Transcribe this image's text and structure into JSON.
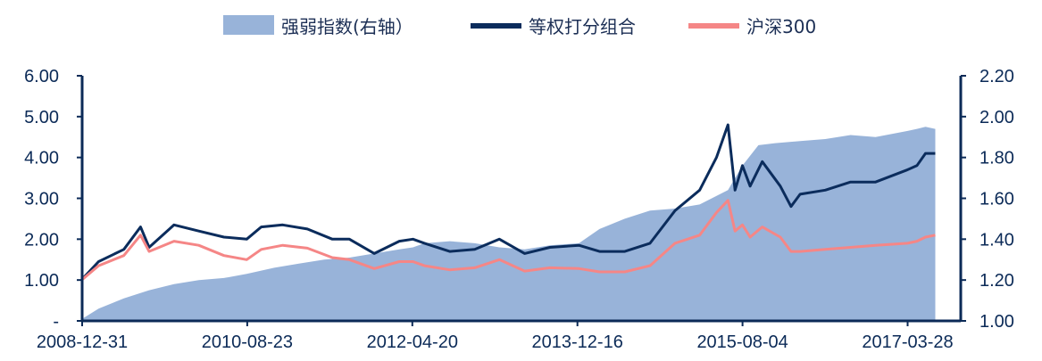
{
  "chart_data": {
    "type": "area+line",
    "title": "",
    "xlabel": "",
    "ylabel": "",
    "ylim_left": [
      0,
      6
    ],
    "ylim_right": [
      1.0,
      2.2
    ],
    "left_tick_labels": [
      "-",
      "1.00",
      "2.00",
      "3.00",
      "4.00",
      "5.00",
      "6.00"
    ],
    "right_tick_labels": [
      "1.00",
      "1.20",
      "1.40",
      "1.60",
      "1.80",
      "2.00",
      "2.20"
    ],
    "x_tick_labels": [
      "2008-12-31",
      "2010-08-23",
      "2012-04-20",
      "2013-12-16",
      "2015-08-04",
      "2017-03-28"
    ],
    "legend_position": "top-center",
    "grid": false,
    "series": [
      {
        "name": "强弱指数(右轴）",
        "kind": "area",
        "axis": "right",
        "color": "#98b3d9",
        "x": [
          "2008-12-31",
          "2009-03-01",
          "2009-06-01",
          "2009-09-01",
          "2009-12-01",
          "2010-03-01",
          "2010-06-01",
          "2010-08-23",
          "2010-12-01",
          "2011-03-01",
          "2011-06-01",
          "2011-09-01",
          "2011-12-01",
          "2012-03-01",
          "2012-04-20",
          "2012-06-01",
          "2012-09-01",
          "2012-12-01",
          "2013-03-01",
          "2013-06-01",
          "2013-09-01",
          "2013-12-16",
          "2014-03-01",
          "2014-06-01",
          "2014-09-01",
          "2014-12-01",
          "2015-03-01",
          "2015-06-12",
          "2015-08-04",
          "2015-10-01",
          "2015-12-01",
          "2016-03-01",
          "2016-06-01",
          "2016-09-01",
          "2016-12-01",
          "2017-03-28",
          "2017-05-01",
          "2017-06-01",
          "2017-07-07"
        ],
        "values": [
          1.01,
          1.06,
          1.11,
          1.15,
          1.18,
          1.2,
          1.21,
          1.23,
          1.26,
          1.28,
          1.3,
          1.31,
          1.33,
          1.35,
          1.36,
          1.38,
          1.39,
          1.38,
          1.36,
          1.35,
          1.37,
          1.38,
          1.45,
          1.5,
          1.54,
          1.55,
          1.57,
          1.64,
          1.76,
          1.86,
          1.87,
          1.88,
          1.89,
          1.91,
          1.9,
          1.93,
          1.94,
          1.95,
          1.94
        ]
      },
      {
        "name": "等权打分组合",
        "kind": "line",
        "axis": "left",
        "color": "#0b2c5c",
        "x": [
          "2008-12-31",
          "2009-03-01",
          "2009-06-01",
          "2009-08-01",
          "2009-09-01",
          "2009-12-01",
          "2010-03-01",
          "2010-06-01",
          "2010-08-23",
          "2010-10-15",
          "2011-01-01",
          "2011-04-01",
          "2011-07-01",
          "2011-09-01",
          "2011-12-01",
          "2012-03-01",
          "2012-04-20",
          "2012-06-01",
          "2012-09-01",
          "2012-12-01",
          "2013-03-01",
          "2013-06-01",
          "2013-09-01",
          "2013-12-16",
          "2014-03-01",
          "2014-06-01",
          "2014-09-01",
          "2014-12-01",
          "2015-03-01",
          "2015-05-01",
          "2015-06-12",
          "2015-07-08",
          "2015-08-04",
          "2015-09-01",
          "2015-10-15",
          "2015-12-20",
          "2016-01-28",
          "2016-03-01",
          "2016-06-01",
          "2016-09-01",
          "2016-12-01",
          "2017-03-28",
          "2017-05-01",
          "2017-06-01",
          "2017-07-07"
        ],
        "values": [
          1.02,
          1.45,
          1.75,
          2.3,
          1.8,
          2.35,
          2.2,
          2.05,
          2.0,
          2.3,
          2.35,
          2.25,
          2.0,
          2.0,
          1.65,
          1.95,
          2.0,
          1.9,
          1.7,
          1.75,
          2.0,
          1.65,
          1.8,
          1.85,
          1.7,
          1.7,
          1.9,
          2.7,
          3.2,
          4.0,
          4.8,
          3.2,
          3.8,
          3.3,
          3.9,
          3.3,
          2.8,
          3.1,
          3.2,
          3.4,
          3.4,
          3.7,
          3.8,
          4.1,
          4.1
        ]
      },
      {
        "name": "沪深300",
        "kind": "line",
        "axis": "left",
        "color": "#f58686",
        "x": [
          "2008-12-31",
          "2009-03-01",
          "2009-06-01",
          "2009-08-01",
          "2009-09-01",
          "2009-12-01",
          "2010-03-01",
          "2010-06-01",
          "2010-08-23",
          "2010-10-15",
          "2011-01-01",
          "2011-04-01",
          "2011-07-01",
          "2011-09-01",
          "2011-12-01",
          "2012-03-01",
          "2012-04-20",
          "2012-06-01",
          "2012-09-01",
          "2012-12-01",
          "2013-03-01",
          "2013-06-01",
          "2013-09-01",
          "2013-12-16",
          "2014-03-01",
          "2014-06-01",
          "2014-09-01",
          "2014-12-01",
          "2015-03-01",
          "2015-05-01",
          "2015-06-12",
          "2015-07-08",
          "2015-08-04",
          "2015-09-01",
          "2015-10-15",
          "2015-12-20",
          "2016-01-28",
          "2016-03-01",
          "2016-06-01",
          "2016-09-01",
          "2016-12-01",
          "2017-03-28",
          "2017-05-01",
          "2017-06-01",
          "2017-07-07"
        ],
        "values": [
          1.01,
          1.35,
          1.6,
          2.1,
          1.7,
          1.95,
          1.85,
          1.6,
          1.5,
          1.75,
          1.85,
          1.78,
          1.55,
          1.5,
          1.28,
          1.45,
          1.45,
          1.35,
          1.25,
          1.3,
          1.5,
          1.22,
          1.3,
          1.28,
          1.2,
          1.2,
          1.35,
          1.9,
          2.1,
          2.65,
          2.95,
          2.2,
          2.35,
          2.05,
          2.3,
          2.05,
          1.7,
          1.7,
          1.75,
          1.8,
          1.85,
          1.9,
          1.95,
          2.05,
          2.1
        ]
      }
    ]
  }
}
